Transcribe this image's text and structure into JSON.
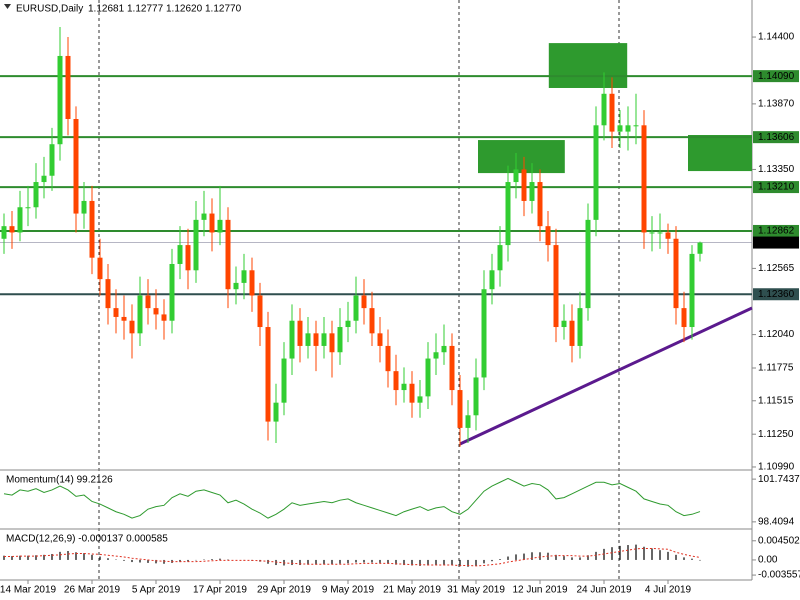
{
  "chart_data": [
    {
      "type": "candlestick",
      "title": "EURUSD,Daily",
      "header_values": [
        "1.12681",
        "1.12777",
        "1.12620",
        "1.12770"
      ],
      "categories": [
        null,
        null,
        null,
        "14 Mar 2019",
        null,
        null,
        null,
        null,
        null,
        null,
        null,
        "26 Mar 2019",
        null,
        null,
        null,
        null,
        null,
        null,
        null,
        "5 Apr 2019",
        null,
        null,
        null,
        null,
        null,
        null,
        null,
        "17 Apr 2019",
        null,
        null,
        null,
        null,
        null,
        null,
        null,
        "29 Apr 2019",
        null,
        null,
        null,
        null,
        null,
        null,
        null,
        "9 May 2019",
        null,
        null,
        null,
        null,
        null,
        null,
        null,
        "21 May 2019",
        null,
        null,
        null,
        null,
        null,
        null,
        null,
        "31 May 2019",
        null,
        null,
        null,
        null,
        null,
        null,
        null,
        "12 Jun 2019",
        null,
        null,
        null,
        null,
        null,
        null,
        null,
        "24 Jun 2019",
        null,
        null,
        null,
        null,
        null,
        null,
        null,
        "4 Jul 2019",
        null,
        null,
        null,
        null
      ],
      "candles": [
        [
          1.128,
          1.13,
          1.1268,
          1.129
        ],
        [
          1.129,
          1.1302,
          1.1272,
          1.1285
        ],
        [
          1.1285,
          1.1318,
          1.1278,
          1.1305
        ],
        [
          1.1305,
          1.1322,
          1.129,
          1.1305
        ],
        [
          1.1305,
          1.134,
          1.1296,
          1.1325
        ],
        [
          1.1325,
          1.1345,
          1.1312,
          1.133
        ],
        [
          1.133,
          1.1368,
          1.1318,
          1.1355
        ],
        [
          1.1355,
          1.1448,
          1.1342,
          1.1425
        ],
        [
          1.1425,
          1.144,
          1.1362,
          1.1375
        ],
        [
          1.1375,
          1.1385,
          1.1285,
          1.13
        ],
        [
          1.13,
          1.1325,
          1.1288,
          1.131
        ],
        [
          1.131,
          1.1322,
          1.1252,
          1.1265
        ],
        [
          1.1265,
          1.128,
          1.1235,
          1.1248
        ],
        [
          1.1248,
          1.126,
          1.1212,
          1.1225
        ],
        [
          1.1225,
          1.124,
          1.1205,
          1.1218
        ],
        [
          1.1218,
          1.1235,
          1.12,
          1.1215
        ],
        [
          1.1215,
          1.1228,
          1.1185,
          1.1205
        ],
        [
          1.1205,
          1.125,
          1.1195,
          1.1235
        ],
        [
          1.1235,
          1.1248,
          1.1212,
          1.1225
        ],
        [
          1.1225,
          1.124,
          1.1208,
          1.122
        ],
        [
          1.122,
          1.1232,
          1.12,
          1.1215
        ],
        [
          1.1215,
          1.1272,
          1.1205,
          1.126
        ],
        [
          1.126,
          1.129,
          1.1248,
          1.1275
        ],
        [
          1.1275,
          1.1288,
          1.124,
          1.1255
        ],
        [
          1.1255,
          1.131,
          1.1245,
          1.1295
        ],
        [
          1.1295,
          1.1318,
          1.1282,
          1.13
        ],
        [
          1.13,
          1.1312,
          1.127,
          1.1285
        ],
        [
          1.1285,
          1.1322,
          1.1275,
          1.1295
        ],
        [
          1.1295,
          1.1305,
          1.1225,
          1.124
        ],
        [
          1.124,
          1.1258,
          1.1228,
          1.1245
        ],
        [
          1.1245,
          1.1268,
          1.1232,
          1.1255
        ],
        [
          1.1255,
          1.1265,
          1.1222,
          1.1235
        ],
        [
          1.1235,
          1.1245,
          1.1195,
          1.121
        ],
        [
          1.121,
          1.1222,
          1.112,
          1.1135
        ],
        [
          1.1135,
          1.1165,
          1.1118,
          1.115
        ],
        [
          1.115,
          1.1198,
          1.114,
          1.1185
        ],
        [
          1.1185,
          1.1228,
          1.1172,
          1.1215
        ],
        [
          1.1215,
          1.1225,
          1.1182,
          1.1195
        ],
        [
          1.1195,
          1.1218,
          1.1185,
          1.1205
        ],
        [
          1.1205,
          1.1215,
          1.1175,
          1.1195
        ],
        [
          1.1195,
          1.1218,
          1.1185,
          1.1205
        ],
        [
          1.1205,
          1.1215,
          1.117,
          1.119
        ],
        [
          1.119,
          1.1225,
          1.118,
          1.121
        ],
        [
          1.121,
          1.123,
          1.1198,
          1.1215
        ],
        [
          1.1215,
          1.125,
          1.1205,
          1.1235
        ],
        [
          1.1235,
          1.1248,
          1.1212,
          1.1225
        ],
        [
          1.1225,
          1.1238,
          1.1195,
          1.1205
        ],
        [
          1.1205,
          1.1218,
          1.1182,
          1.1195
        ],
        [
          1.1195,
          1.1208,
          1.1162,
          1.1175
        ],
        [
          1.1175,
          1.1188,
          1.1148,
          1.116
        ],
        [
          1.116,
          1.1178,
          1.115,
          1.1165
        ],
        [
          1.1165,
          1.1175,
          1.1138,
          1.115
        ],
        [
          1.115,
          1.1168,
          1.1138,
          1.1155
        ],
        [
          1.1155,
          1.1198,
          1.1145,
          1.1185
        ],
        [
          1.1185,
          1.1205,
          1.1172,
          1.119
        ],
        [
          1.119,
          1.1212,
          1.118,
          1.1195
        ],
        [
          1.1195,
          1.1205,
          1.1148,
          1.116
        ],
        [
          1.116,
          1.1172,
          1.1115,
          1.113
        ],
        [
          1.113,
          1.1152,
          1.1118,
          1.114
        ],
        [
          1.114,
          1.1185,
          1.1128,
          1.117
        ],
        [
          1.117,
          1.1255,
          1.116,
          1.124
        ],
        [
          1.124,
          1.1268,
          1.1228,
          1.1255
        ],
        [
          1.1255,
          1.129,
          1.1242,
          1.1275
        ],
        [
          1.1275,
          1.1338,
          1.1262,
          1.1325
        ],
        [
          1.1325,
          1.1348,
          1.1312,
          1.1335
        ],
        [
          1.1335,
          1.1345,
          1.1298,
          1.131
        ],
        [
          1.131,
          1.134,
          1.13,
          1.1325
        ],
        [
          1.1325,
          1.1335,
          1.1278,
          1.129
        ],
        [
          1.129,
          1.1302,
          1.1262,
          1.1275
        ],
        [
          1.1275,
          1.1288,
          1.1198,
          1.121
        ],
        [
          1.121,
          1.1228,
          1.12,
          1.1215
        ],
        [
          1.1215,
          1.1228,
          1.1182,
          1.1195
        ],
        [
          1.1195,
          1.1238,
          1.1185,
          1.1225
        ],
        [
          1.1225,
          1.1308,
          1.1215,
          1.1295
        ],
        [
          1.1295,
          1.1385,
          1.1282,
          1.137
        ],
        [
          1.137,
          1.1412,
          1.1358,
          1.1395
        ],
        [
          1.1395,
          1.1408,
          1.1352,
          1.1365
        ],
        [
          1.1365,
          1.1382,
          1.1352,
          1.137
        ],
        [
          1.1365,
          1.1385,
          1.135,
          1.137
        ],
        [
          1.137,
          1.1395,
          1.1355,
          1.137
        ],
        [
          1.137,
          1.1382,
          1.1272,
          1.1285
        ],
        [
          1.1285,
          1.1298,
          1.127,
          1.1285
        ],
        [
          1.1285,
          1.13,
          1.1272,
          1.1285
        ],
        [
          1.1285,
          1.1292,
          1.1268,
          1.128
        ],
        [
          1.128,
          1.129,
          1.1212,
          1.1225
        ],
        [
          1.1225,
          1.1238,
          1.1198,
          1.121
        ],
        [
          1.121,
          1.1275,
          1.12,
          1.1268
        ],
        [
          1.12681,
          1.12777,
          1.1262,
          1.1277
        ]
      ],
      "up_color": "#32cd32",
      "down_color": "#ff4500",
      "ylim": [
        1.10966,
        1.14678
      ],
      "yticks": [
        {
          "value": 1.144,
          "label": "1.14400"
        },
        {
          "value": 1.1387,
          "label": "1.13870"
        },
        {
          "value": 1.1335,
          "label": "1.13350"
        },
        {
          "value": 1.12565,
          "label": "1.12565"
        },
        {
          "value": 1.1204,
          "label": "1.12040"
        },
        {
          "value": 1.11775,
          "label": "1.11775"
        },
        {
          "value": 1.11515,
          "label": "1.11515"
        },
        {
          "value": 1.1125,
          "label": "1.11250"
        },
        {
          "value": 1.1099,
          "label": "1.10990"
        }
      ],
      "levels": [
        {
          "value": 1.1409,
          "label": "1.14090"
        },
        {
          "value": 1.13606,
          "label": "1.13606"
        },
        {
          "value": 1.1321,
          "label": "1.13210"
        },
        {
          "value": 1.12862,
          "label": "1.12862"
        },
        {
          "value": 1.1236,
          "label": "1.12360"
        }
      ],
      "level_color": "#2e8b2e",
      "last_price": {
        "value": 1.1277,
        "label": "1.12770"
      },
      "zones": [
        {
          "x": [
            59.25,
            70.1
          ],
          "y": [
            1.13321,
            1.13583
          ]
        },
        {
          "x": [
            68.1,
            77.9
          ],
          "y": [
            1.13996,
            1.14352
          ]
        },
        {
          "x": [
            85.5,
            93.5
          ],
          "y": [
            1.13337,
            1.13623
          ]
        }
      ],
      "zone_color": "#2e9a2e",
      "trendline": {
        "x": [
          57,
          93.5
        ],
        "y": [
          1.11172,
          1.12251
        ]
      },
      "trend_color": "#5b1a8e"
    },
    {
      "type": "line",
      "title": "Momentum(14) 99.2126",
      "color": "#2e9a2e",
      "ylim": [
        97.93,
        102.3
      ],
      "yticks": [
        101.7437,
        98.4094
      ],
      "values": [
        100.6,
        100.5,
        100.9,
        100.8,
        101.0,
        100.7,
        100.9,
        101.2,
        100.9,
        100.4,
        100.5,
        100.0,
        99.8,
        99.5,
        99.2,
        99.0,
        98.7,
        98.9,
        99.4,
        99.6,
        99.7,
        100.3,
        100.6,
        100.4,
        100.8,
        100.9,
        100.7,
        100.5,
        99.9,
        100.1,
        99.8,
        99.4,
        99.1,
        98.7,
        99.0,
        99.4,
        99.9,
        99.7,
        99.8,
        99.9,
        100.0,
        99.9,
        100.1,
        100.2,
        99.9,
        99.7,
        99.5,
        99.3,
        99.1,
        98.9,
        99.2,
        99.4,
        99.6,
        99.3,
        99.5,
        99.6,
        99.2,
        99.0,
        99.4,
        100.1,
        100.8,
        101.2,
        101.5,
        101.8,
        101.5,
        101.2,
        101.4,
        101.3,
        100.9,
        100.2,
        100.3,
        100.6,
        100.9,
        101.2,
        101.5,
        101.5,
        101.3,
        101.4,
        101.1,
        100.8,
        100.2,
        100.0,
        99.8,
        99.7,
        99.2,
        98.9,
        99.0,
        99.2126
      ]
    },
    {
      "type": "macd",
      "title": "MACD(12,26,9) -0.000137 0.000585",
      "color": "#333333",
      "signal_color": "#e03020",
      "ylim": [
        -0.00448,
        0.0068
      ],
      "yticks": [
        0.004502,
        {
          "value": 0,
          "label": "0.00"
        },
        -0.003557
      ],
      "values": [
        0.001,
        0.0009,
        0.001,
        0.001,
        0.0011,
        0.0012,
        0.0014,
        0.0019,
        0.0021,
        0.0018,
        0.0016,
        0.0012,
        0.0008,
        0.0004,
        0.0001,
        -0.0002,
        -0.0005,
        -0.0006,
        -0.0007,
        -0.0008,
        -0.0009,
        -0.0007,
        -0.0005,
        -0.0004,
        -0.0001,
        0.0001,
        0.0002,
        0.0003,
        0.0001,
        0.0,
        -0.0001,
        -0.0002,
        -0.0004,
        -0.0009,
        -0.0012,
        -0.0013,
        -0.0012,
        -0.0012,
        -0.0011,
        -0.0011,
        -0.001,
        -0.001,
        -0.0009,
        -0.0008,
        -0.0006,
        -0.0006,
        -0.0006,
        -0.0007,
        -0.0009,
        -0.0011,
        -0.0012,
        -0.0013,
        -0.0014,
        -0.0013,
        -0.0012,
        -0.0011,
        -0.0012,
        -0.0015,
        -0.0016,
        -0.0014,
        -0.0008,
        -0.0003,
        0.0002,
        0.0008,
        0.0013,
        0.0015,
        0.0018,
        0.0018,
        0.0017,
        0.0012,
        0.0009,
        0.0006,
        0.0006,
        0.0011,
        0.0019,
        0.0026,
        0.003,
        0.0033,
        0.0035,
        0.0036,
        0.0031,
        0.0027,
        0.0023,
        0.0019,
        0.0012,
        0.0006,
        0.0003,
        -0.000137
      ],
      "signal": [
        0.0008,
        0.0008,
        0.0009,
        0.0009,
        0.0009,
        0.001,
        0.0011,
        0.0012,
        0.0014,
        0.0015,
        0.0015,
        0.0014,
        0.0013,
        0.0011,
        0.0009,
        0.0007,
        0.0004,
        0.0002,
        0.0,
        -0.0002,
        -0.0003,
        -0.0004,
        -0.0004,
        -0.0004,
        -0.0004,
        -0.0003,
        -0.0002,
        -0.0001,
        -0.0001,
        -0.0001,
        -0.0001,
        -0.0001,
        -0.0002,
        -0.0003,
        -0.0005,
        -0.0007,
        -0.0008,
        -0.0009,
        -0.001,
        -0.001,
        -0.001,
        -0.001,
        -0.001,
        -0.001,
        -0.0009,
        -0.0008,
        -0.0008,
        -0.0008,
        -0.0008,
        -0.0009,
        -0.001,
        -0.0011,
        -0.0011,
        -0.0012,
        -0.0012,
        -0.0012,
        -0.0012,
        -0.0013,
        -0.0013,
        -0.0014,
        -0.0013,
        -0.0011,
        -0.0009,
        -0.0005,
        -0.0002,
        0.0001,
        0.0004,
        0.0007,
        0.0009,
        0.001,
        0.001,
        0.001,
        0.0009,
        0.0009,
        0.0011,
        0.0014,
        0.0017,
        0.002,
        0.0023,
        0.0026,
        0.0027,
        0.0027,
        0.0026,
        0.0025,
        0.0018,
        0.0013,
        0.0009,
        0.000585
      ]
    }
  ]
}
